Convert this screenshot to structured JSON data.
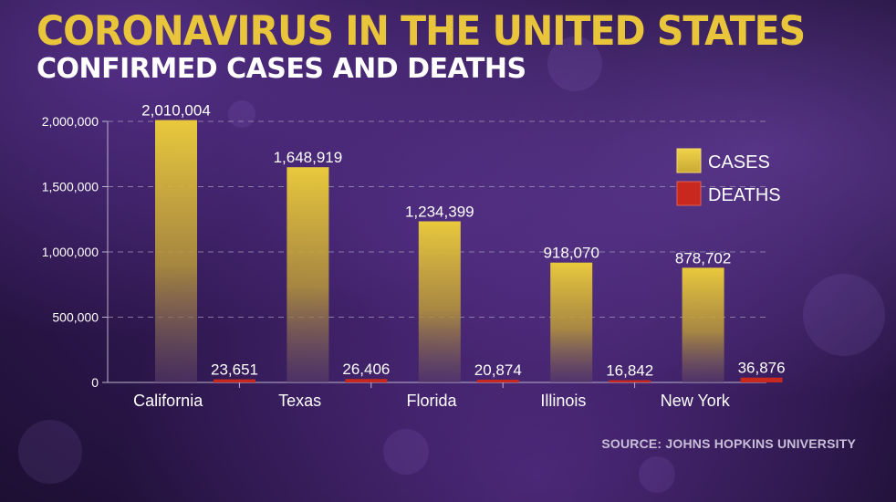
{
  "header": {
    "title": "CORONAVIRUS IN THE UNITED STATES",
    "subtitle": "CONFIRMED CASES AND DEATHS"
  },
  "source": "SOURCE: JOHNS HOPKINS UNIVERSITY",
  "chart_data": {
    "type": "bar",
    "categories": [
      "California",
      "Texas",
      "Florida",
      "Illinois",
      "New York"
    ],
    "series": [
      {
        "name": "CASES",
        "values": [
          2010004,
          1648919,
          1234399,
          918070,
          878702
        ],
        "color": "#e5c43b"
      },
      {
        "name": "DEATHS",
        "values": [
          23651,
          26406,
          20874,
          16842,
          36876
        ],
        "color": "#c8281e"
      }
    ],
    "value_labels": {
      "CASES": [
        "2,010,004",
        "1,648,919",
        "1,234,399",
        "918,070",
        "878,702"
      ],
      "DEATHS": [
        "23,651",
        "26,406",
        "20,874",
        "16,842",
        "36,876"
      ]
    },
    "y_ticks": [
      0,
      500000,
      1000000,
      1500000,
      2000000
    ],
    "y_tick_labels": [
      "0",
      "500,000",
      "1,000,000",
      "1,500,000",
      "2,000,000"
    ],
    "ylim": [
      0,
      2000000
    ],
    "grid": true,
    "legend_position": "top-right"
  }
}
